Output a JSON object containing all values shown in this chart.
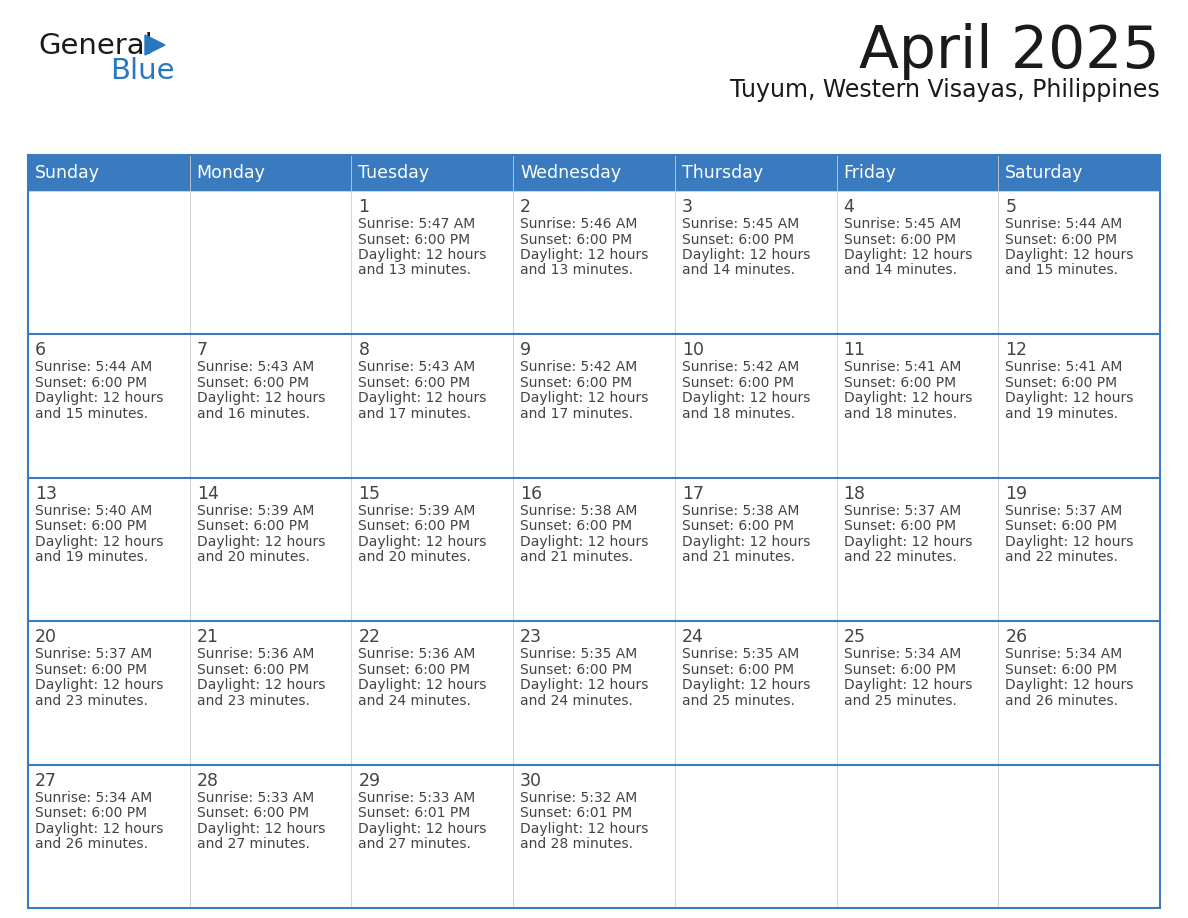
{
  "title": "April 2025",
  "subtitle": "Tuyum, Western Visayas, Philippines",
  "header_bg_color": "#3a7bbf",
  "header_text_color": "#ffffff",
  "border_color": "#3a7bbf",
  "text_color": "#444444",
  "days_of_week": [
    "Sunday",
    "Monday",
    "Tuesday",
    "Wednesday",
    "Thursday",
    "Friday",
    "Saturday"
  ],
  "calendar_data": [
    [
      {
        "day": "",
        "sunrise": "",
        "sunset": "",
        "daylight": ""
      },
      {
        "day": "",
        "sunrise": "",
        "sunset": "",
        "daylight": ""
      },
      {
        "day": "1",
        "sunrise": "5:47 AM",
        "sunset": "6:00 PM",
        "daylight": "12 hours and 13 minutes."
      },
      {
        "day": "2",
        "sunrise": "5:46 AM",
        "sunset": "6:00 PM",
        "daylight": "12 hours and 13 minutes."
      },
      {
        "day": "3",
        "sunrise": "5:45 AM",
        "sunset": "6:00 PM",
        "daylight": "12 hours and 14 minutes."
      },
      {
        "day": "4",
        "sunrise": "5:45 AM",
        "sunset": "6:00 PM",
        "daylight": "12 hours and 14 minutes."
      },
      {
        "day": "5",
        "sunrise": "5:44 AM",
        "sunset": "6:00 PM",
        "daylight": "12 hours and 15 minutes."
      }
    ],
    [
      {
        "day": "6",
        "sunrise": "5:44 AM",
        "sunset": "6:00 PM",
        "daylight": "12 hours and 15 minutes."
      },
      {
        "day": "7",
        "sunrise": "5:43 AM",
        "sunset": "6:00 PM",
        "daylight": "12 hours and 16 minutes."
      },
      {
        "day": "8",
        "sunrise": "5:43 AM",
        "sunset": "6:00 PM",
        "daylight": "12 hours and 17 minutes."
      },
      {
        "day": "9",
        "sunrise": "5:42 AM",
        "sunset": "6:00 PM",
        "daylight": "12 hours and 17 minutes."
      },
      {
        "day": "10",
        "sunrise": "5:42 AM",
        "sunset": "6:00 PM",
        "daylight": "12 hours and 18 minutes."
      },
      {
        "day": "11",
        "sunrise": "5:41 AM",
        "sunset": "6:00 PM",
        "daylight": "12 hours and 18 minutes."
      },
      {
        "day": "12",
        "sunrise": "5:41 AM",
        "sunset": "6:00 PM",
        "daylight": "12 hours and 19 minutes."
      }
    ],
    [
      {
        "day": "13",
        "sunrise": "5:40 AM",
        "sunset": "6:00 PM",
        "daylight": "12 hours and 19 minutes."
      },
      {
        "day": "14",
        "sunrise": "5:39 AM",
        "sunset": "6:00 PM",
        "daylight": "12 hours and 20 minutes."
      },
      {
        "day": "15",
        "sunrise": "5:39 AM",
        "sunset": "6:00 PM",
        "daylight": "12 hours and 20 minutes."
      },
      {
        "day": "16",
        "sunrise": "5:38 AM",
        "sunset": "6:00 PM",
        "daylight": "12 hours and 21 minutes."
      },
      {
        "day": "17",
        "sunrise": "5:38 AM",
        "sunset": "6:00 PM",
        "daylight": "12 hours and 21 minutes."
      },
      {
        "day": "18",
        "sunrise": "5:37 AM",
        "sunset": "6:00 PM",
        "daylight": "12 hours and 22 minutes."
      },
      {
        "day": "19",
        "sunrise": "5:37 AM",
        "sunset": "6:00 PM",
        "daylight": "12 hours and 22 minutes."
      }
    ],
    [
      {
        "day": "20",
        "sunrise": "5:37 AM",
        "sunset": "6:00 PM",
        "daylight": "12 hours and 23 minutes."
      },
      {
        "day": "21",
        "sunrise": "5:36 AM",
        "sunset": "6:00 PM",
        "daylight": "12 hours and 23 minutes."
      },
      {
        "day": "22",
        "sunrise": "5:36 AM",
        "sunset": "6:00 PM",
        "daylight": "12 hours and 24 minutes."
      },
      {
        "day": "23",
        "sunrise": "5:35 AM",
        "sunset": "6:00 PM",
        "daylight": "12 hours and 24 minutes."
      },
      {
        "day": "24",
        "sunrise": "5:35 AM",
        "sunset": "6:00 PM",
        "daylight": "12 hours and 25 minutes."
      },
      {
        "day": "25",
        "sunrise": "5:34 AM",
        "sunset": "6:00 PM",
        "daylight": "12 hours and 25 minutes."
      },
      {
        "day": "26",
        "sunrise": "5:34 AM",
        "sunset": "6:00 PM",
        "daylight": "12 hours and 26 minutes."
      }
    ],
    [
      {
        "day": "27",
        "sunrise": "5:34 AM",
        "sunset": "6:00 PM",
        "daylight": "12 hours and 26 minutes."
      },
      {
        "day": "28",
        "sunrise": "5:33 AM",
        "sunset": "6:00 PM",
        "daylight": "12 hours and 27 minutes."
      },
      {
        "day": "29",
        "sunrise": "5:33 AM",
        "sunset": "6:01 PM",
        "daylight": "12 hours and 27 minutes."
      },
      {
        "day": "30",
        "sunrise": "5:32 AM",
        "sunset": "6:01 PM",
        "daylight": "12 hours and 28 minutes."
      },
      {
        "day": "",
        "sunrise": "",
        "sunset": "",
        "daylight": ""
      },
      {
        "day": "",
        "sunrise": "",
        "sunset": "",
        "daylight": ""
      },
      {
        "day": "",
        "sunrise": "",
        "sunset": "",
        "daylight": ""
      }
    ]
  ],
  "logo_text1": "General",
  "logo_text2": "Blue",
  "logo_text1_color": "#1a1a1a",
  "logo_text2_color": "#2878c0",
  "logo_triangle_color": "#2878c0",
  "title_color": "#1a1a1a",
  "subtitle_color": "#1a1a1a"
}
